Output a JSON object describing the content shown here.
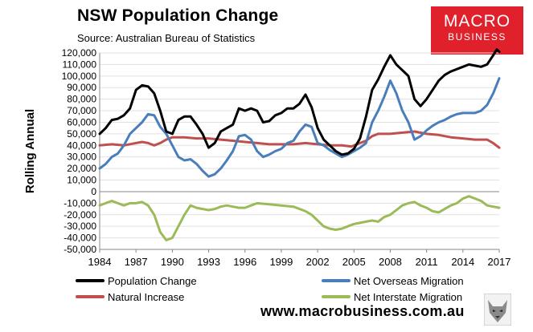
{
  "header": {
    "title": "NSW Population Change",
    "subtitle": "Source: Australian Bureau of Statistics"
  },
  "logo": {
    "line1": "MACRO",
    "line2": "BUSINESS"
  },
  "footer": {
    "website": "www.macrobusiness.com.au"
  },
  "colors": {
    "population": "#000000",
    "overseas": "#4a7ebb",
    "natural": "#c0504d",
    "interstate": "#9bbb59",
    "brand": "#e0202a",
    "grid": "#e0e0e0"
  },
  "chart_data": {
    "type": "line",
    "title": "NSW Population Change",
    "ylabel": "Rolling Annual",
    "xlabel": "",
    "xlim": [
      1984,
      2017
    ],
    "ylim": [
      -50000,
      120000
    ],
    "y_ticks": [
      120000,
      110000,
      100000,
      90000,
      80000,
      70000,
      60000,
      50000,
      40000,
      30000,
      20000,
      10000,
      0,
      -10000,
      -20000,
      -30000,
      -40000,
      -50000
    ],
    "y_tick_labels": [
      "120,000",
      "110,000",
      "100,000",
      "90,000",
      "80,000",
      "70,000",
      "60,000",
      "50,000",
      "40,000",
      "30,000",
      "20,000",
      "10,000",
      "0",
      "-10,000",
      "-20,000",
      "-30,000",
      "-40,000",
      "-50,000"
    ],
    "x_ticks": [
      1984,
      1987,
      1990,
      1993,
      1996,
      1999,
      2002,
      2005,
      2008,
      2011,
      2014,
      2017
    ],
    "x_tick_labels": [
      "1984",
      "1987",
      "1990",
      "1993",
      "1996",
      "1999",
      "2002",
      "2005",
      "2008",
      "2011",
      "2014",
      "2017"
    ],
    "grid": true,
    "series": [
      {
        "name": "Population Change",
        "key": "population",
        "points": [
          [
            1984,
            50000
          ],
          [
            1984.5,
            55000
          ],
          [
            1985,
            62000
          ],
          [
            1985.5,
            63000
          ],
          [
            1986,
            66000
          ],
          [
            1986.5,
            72000
          ],
          [
            1987,
            88000
          ],
          [
            1987.5,
            92000
          ],
          [
            1988,
            91000
          ],
          [
            1988.5,
            85000
          ],
          [
            1989,
            70000
          ],
          [
            1989.5,
            52000
          ],
          [
            1990,
            50000
          ],
          [
            1990.5,
            62000
          ],
          [
            1991,
            65000
          ],
          [
            1991.5,
            65000
          ],
          [
            1992,
            58000
          ],
          [
            1992.5,
            50000
          ],
          [
            1993,
            38000
          ],
          [
            1993.5,
            42000
          ],
          [
            1994,
            52000
          ],
          [
            1994.5,
            55000
          ],
          [
            1995,
            58000
          ],
          [
            1995.5,
            72000
          ],
          [
            1996,
            70000
          ],
          [
            1996.5,
            72000
          ],
          [
            1997,
            70000
          ],
          [
            1997.5,
            60000
          ],
          [
            1998,
            61000
          ],
          [
            1998.5,
            66000
          ],
          [
            1999,
            68000
          ],
          [
            1999.5,
            72000
          ],
          [
            2000,
            72000
          ],
          [
            2000.5,
            76000
          ],
          [
            2001,
            84000
          ],
          [
            2001.5,
            73000
          ],
          [
            2002,
            55000
          ],
          [
            2002.5,
            45000
          ],
          [
            2003,
            40000
          ],
          [
            2003.5,
            35000
          ],
          [
            2004,
            32000
          ],
          [
            2004.5,
            33000
          ],
          [
            2005,
            37000
          ],
          [
            2005.5,
            46000
          ],
          [
            2006,
            65000
          ],
          [
            2006.5,
            88000
          ],
          [
            2007,
            97000
          ],
          [
            2007.5,
            108000
          ],
          [
            2008,
            118000
          ],
          [
            2008.5,
            110000
          ],
          [
            2009,
            105000
          ],
          [
            2009.5,
            100000
          ],
          [
            2010,
            80000
          ],
          [
            2010.5,
            74000
          ],
          [
            2011,
            80000
          ],
          [
            2011.5,
            88000
          ],
          [
            2012,
            96000
          ],
          [
            2012.5,
            101000
          ],
          [
            2013,
            104000
          ],
          [
            2013.5,
            106000
          ],
          [
            2014,
            108000
          ],
          [
            2014.5,
            110000
          ],
          [
            2015,
            109000
          ],
          [
            2015.5,
            108000
          ],
          [
            2016,
            110000
          ],
          [
            2016.5,
            118000
          ],
          [
            2016.8,
            123000
          ],
          [
            2017,
            121000
          ]
        ]
      },
      {
        "name": "Net Overseas Migration",
        "key": "overseas",
        "points": [
          [
            1984,
            20000
          ],
          [
            1984.5,
            24000
          ],
          [
            1985,
            30000
          ],
          [
            1985.5,
            33000
          ],
          [
            1986,
            40000
          ],
          [
            1986.5,
            50000
          ],
          [
            1987,
            55000
          ],
          [
            1987.5,
            60000
          ],
          [
            1988,
            67000
          ],
          [
            1988.5,
            66000
          ],
          [
            1989,
            56000
          ],
          [
            1989.5,
            50000
          ],
          [
            1990,
            40000
          ],
          [
            1990.5,
            30000
          ],
          [
            1991,
            27000
          ],
          [
            1991.5,
            28000
          ],
          [
            1992,
            24000
          ],
          [
            1992.5,
            18000
          ],
          [
            1993,
            13000
          ],
          [
            1993.5,
            15000
          ],
          [
            1994,
            20000
          ],
          [
            1994.5,
            27000
          ],
          [
            1995,
            35000
          ],
          [
            1995.5,
            48000
          ],
          [
            1996,
            49000
          ],
          [
            1996.5,
            45000
          ],
          [
            1997,
            35000
          ],
          [
            1997.5,
            30000
          ],
          [
            1998,
            32000
          ],
          [
            1998.5,
            35000
          ],
          [
            1999,
            37000
          ],
          [
            1999.5,
            42000
          ],
          [
            2000,
            44000
          ],
          [
            2000.5,
            52000
          ],
          [
            2001,
            58000
          ],
          [
            2001.5,
            56000
          ],
          [
            2002,
            42000
          ],
          [
            2002.5,
            40000
          ],
          [
            2003,
            36000
          ],
          [
            2003.5,
            33000
          ],
          [
            2004,
            30000
          ],
          [
            2004.5,
            32000
          ],
          [
            2005,
            35000
          ],
          [
            2005.5,
            38000
          ],
          [
            2006,
            42000
          ],
          [
            2006.5,
            60000
          ],
          [
            2007,
            70000
          ],
          [
            2007.5,
            82000
          ],
          [
            2008,
            96000
          ],
          [
            2008.5,
            85000
          ],
          [
            2009,
            70000
          ],
          [
            2009.5,
            60000
          ],
          [
            2010,
            45000
          ],
          [
            2010.5,
            48000
          ],
          [
            2011,
            53000
          ],
          [
            2011.5,
            57000
          ],
          [
            2012,
            60000
          ],
          [
            2012.5,
            62000
          ],
          [
            2013,
            65000
          ],
          [
            2013.5,
            67000
          ],
          [
            2014,
            68000
          ],
          [
            2014.5,
            68000
          ],
          [
            2015,
            68000
          ],
          [
            2015.5,
            70000
          ],
          [
            2016,
            75000
          ],
          [
            2016.5,
            85000
          ],
          [
            2017,
            98000
          ]
        ]
      },
      {
        "name": "Natural Increase",
        "key": "natural",
        "points": [
          [
            1984,
            40000
          ],
          [
            1985,
            41000
          ],
          [
            1986,
            40000
          ],
          [
            1987,
            42000
          ],
          [
            1987.5,
            43000
          ],
          [
            1988,
            42000
          ],
          [
            1988.5,
            40000
          ],
          [
            1989,
            42000
          ],
          [
            1989.5,
            45000
          ],
          [
            1990,
            47000
          ],
          [
            1991,
            47000
          ],
          [
            1992,
            46000
          ],
          [
            1993,
            46000
          ],
          [
            1994,
            45000
          ],
          [
            1995,
            44000
          ],
          [
            1996,
            43000
          ],
          [
            1997,
            42000
          ],
          [
            1998,
            41000
          ],
          [
            1999,
            41000
          ],
          [
            2000,
            41000
          ],
          [
            2001,
            42000
          ],
          [
            2002,
            41000
          ],
          [
            2003,
            40000
          ],
          [
            2004,
            40000
          ],
          [
            2004.8,
            39000
          ],
          [
            2005,
            40000
          ],
          [
            2006,
            44000
          ],
          [
            2006.5,
            48000
          ],
          [
            2007,
            50000
          ],
          [
            2008,
            50000
          ],
          [
            2009,
            51000
          ],
          [
            2010,
            52000
          ],
          [
            2011,
            50000
          ],
          [
            2012,
            49000
          ],
          [
            2013,
            47000
          ],
          [
            2014,
            46000
          ],
          [
            2015,
            45000
          ],
          [
            2016,
            45000
          ],
          [
            2016.5,
            42000
          ],
          [
            2017,
            38000
          ]
        ]
      },
      {
        "name": "Net Interstate Migration",
        "key": "interstate",
        "points": [
          [
            1984,
            -12000
          ],
          [
            1984.5,
            -10000
          ],
          [
            1985,
            -8000
          ],
          [
            1985.5,
            -10000
          ],
          [
            1986,
            -12000
          ],
          [
            1986.5,
            -10000
          ],
          [
            1987,
            -10000
          ],
          [
            1987.5,
            -9000
          ],
          [
            1988,
            -12000
          ],
          [
            1988.5,
            -20000
          ],
          [
            1989,
            -35000
          ],
          [
            1989.5,
            -42000
          ],
          [
            1990,
            -40000
          ],
          [
            1990.5,
            -30000
          ],
          [
            1991,
            -20000
          ],
          [
            1991.5,
            -12000
          ],
          [
            1992,
            -14000
          ],
          [
            1992.5,
            -15000
          ],
          [
            1993,
            -16000
          ],
          [
            1993.5,
            -15000
          ],
          [
            1994,
            -13000
          ],
          [
            1994.5,
            -12000
          ],
          [
            1995,
            -13000
          ],
          [
            1995.5,
            -14000
          ],
          [
            1996,
            -14000
          ],
          [
            1996.5,
            -12000
          ],
          [
            1997,
            -10000
          ],
          [
            1998,
            -11000
          ],
          [
            1999,
            -12000
          ],
          [
            2000,
            -13000
          ],
          [
            2001,
            -17000
          ],
          [
            2001.5,
            -20000
          ],
          [
            2002,
            -25000
          ],
          [
            2002.5,
            -30000
          ],
          [
            2003,
            -32000
          ],
          [
            2003.5,
            -33000
          ],
          [
            2004,
            -32000
          ],
          [
            2004.5,
            -30000
          ],
          [
            2005,
            -28000
          ],
          [
            2005.5,
            -27000
          ],
          [
            2006,
            -26000
          ],
          [
            2006.5,
            -25000
          ],
          [
            2007,
            -26000
          ],
          [
            2007.5,
            -22000
          ],
          [
            2008,
            -20000
          ],
          [
            2008.5,
            -16000
          ],
          [
            2009,
            -12000
          ],
          [
            2009.5,
            -10000
          ],
          [
            2010,
            -9000
          ],
          [
            2010.5,
            -12000
          ],
          [
            2011,
            -14000
          ],
          [
            2011.5,
            -17000
          ],
          [
            2012,
            -18000
          ],
          [
            2012.5,
            -15000
          ],
          [
            2013,
            -12000
          ],
          [
            2013.5,
            -10000
          ],
          [
            2014,
            -6000
          ],
          [
            2014.5,
            -4000
          ],
          [
            2015,
            -6000
          ],
          [
            2015.5,
            -8000
          ],
          [
            2016,
            -12000
          ],
          [
            2016.5,
            -13000
          ],
          [
            2017,
            -14000
          ]
        ]
      }
    ],
    "legend": [
      {
        "key": "population",
        "label": "Population Change"
      },
      {
        "key": "overseas",
        "label": "Net Overseas Migration"
      },
      {
        "key": "natural",
        "label": "Natural Increase"
      },
      {
        "key": "interstate",
        "label": "Net Interstate Migration"
      }
    ],
    "legend_position": "bottom"
  }
}
